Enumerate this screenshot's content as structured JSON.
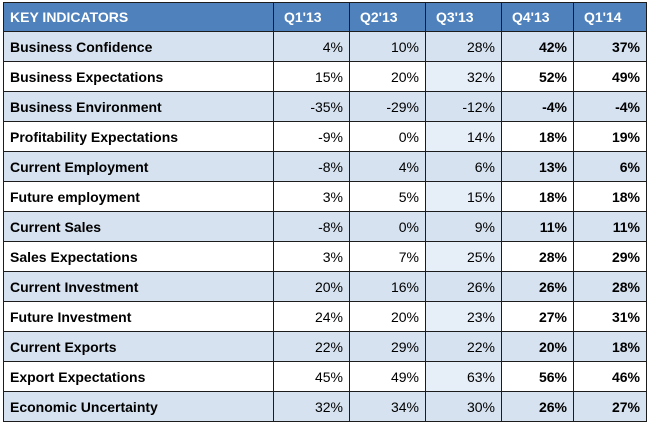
{
  "table": {
    "headers": [
      "KEY INDICATORS",
      "Q1'13",
      "Q2'13",
      "Q3'13",
      "Q4'13",
      "Q1'14"
    ],
    "rows": [
      {
        "label": "Business Confidence",
        "values": [
          "4%",
          "10%",
          "28%",
          "42%",
          "37%"
        ]
      },
      {
        "label": "Business Expectations",
        "values": [
          "15%",
          "20%",
          "32%",
          "52%",
          "49%"
        ]
      },
      {
        "label": "Business Environment",
        "values": [
          "-35%",
          "-29%",
          "-12%",
          "-4%",
          "-4%"
        ]
      },
      {
        "label": "Profitability Expectations",
        "values": [
          "-9%",
          "0%",
          "14%",
          "18%",
          "19%"
        ]
      },
      {
        "label": "Current Employment",
        "values": [
          "-8%",
          "4%",
          "6%",
          "13%",
          "6%"
        ]
      },
      {
        "label": "Future employment",
        "values": [
          "3%",
          "5%",
          "15%",
          "18%",
          "18%"
        ]
      },
      {
        "label": "Current Sales",
        "values": [
          "-8%",
          "0%",
          "9%",
          "11%",
          "11%"
        ]
      },
      {
        "label": "Sales Expectations",
        "values": [
          "3%",
          "7%",
          "25%",
          "28%",
          "29%"
        ]
      },
      {
        "label": "Current Investment",
        "values": [
          "20%",
          "16%",
          "26%",
          "26%",
          "28%"
        ]
      },
      {
        "label": "Future Investment",
        "values": [
          "24%",
          "20%",
          "23%",
          "27%",
          "31%"
        ]
      },
      {
        "label": "Current Exports",
        "values": [
          "22%",
          "29%",
          "22%",
          "20%",
          "18%"
        ]
      },
      {
        "label": "Export Expectations",
        "values": [
          "45%",
          "49%",
          "63%",
          "56%",
          "46%"
        ]
      },
      {
        "label": "Economic Uncertainty",
        "values": [
          "32%",
          "34%",
          "30%",
          "26%",
          "27%"
        ]
      }
    ]
  },
  "colors": {
    "header_bg": "#4f81bd",
    "header_text": "#ffffff",
    "band_blue": "#d6e2f0",
    "band_white": "#ffffff",
    "highlight_cell": "#e6eef8"
  }
}
